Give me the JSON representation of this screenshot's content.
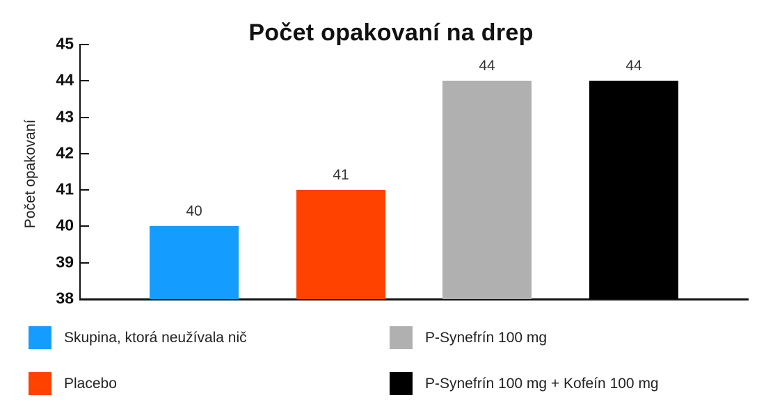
{
  "chart_data": {
    "type": "bar",
    "title": "Počet opakovaní na drep",
    "xlabel": "",
    "ylabel": "Počet opakovaní",
    "ylim": [
      38,
      45
    ],
    "yticks": [
      "45",
      "44",
      "43",
      "42",
      "41",
      "40",
      "39",
      "38"
    ],
    "grid": false,
    "legend_position": "bottom",
    "categories": [
      "Skupina, ktorá neužívala nič",
      "Placebo",
      "P-Synefrín 100 mg",
      "P-Synefrín 100 mg + Kofeín 100 mg"
    ],
    "values": [
      40,
      41,
      44,
      44
    ],
    "data_labels": [
      "40",
      "41",
      "44",
      "44"
    ],
    "colors": [
      "#149dff",
      "#ff4200",
      "#b0b0b0",
      "#000000"
    ]
  },
  "legend": [
    {
      "label": "Skupina, ktorá neužívala nič",
      "color": "#149dff"
    },
    {
      "label": "Placebo",
      "color": "#ff4200"
    },
    {
      "label": "P-Synefrín 100 mg",
      "color": "#b0b0b0"
    },
    {
      "label": "P-Synefrín 100 mg + Kofeín 100 mg",
      "color": "#000000"
    }
  ]
}
